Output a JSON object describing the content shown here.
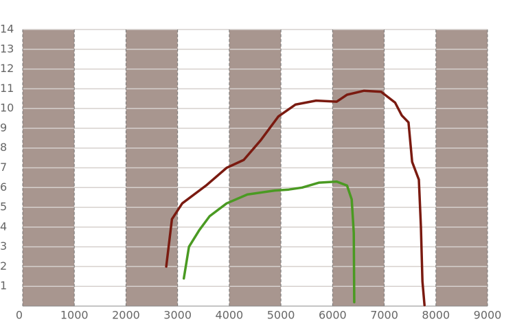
{
  "chart_data": {
    "type": "line",
    "xlim": [
      0,
      9000
    ],
    "xticks": [
      0,
      1000,
      2000,
      3000,
      4000,
      5000,
      6000,
      7000,
      8000,
      9000
    ],
    "ylim": [
      0,
      14
    ],
    "yticks": [
      1,
      2,
      3,
      4,
      5,
      6,
      7,
      8,
      9,
      10,
      11,
      12,
      13,
      14
    ],
    "grid": true,
    "band_color": "#a8968f",
    "series": [
      {
        "color": "#7a1a10",
        "x": [
          2780,
          2890,
          3090,
          3550,
          3950,
          4280,
          4610,
          4950,
          5280,
          5680,
          6080,
          6280,
          6610,
          6940,
          7210,
          7340,
          7470,
          7540,
          7670,
          7710,
          7740,
          7780
        ],
        "values": [
          2.0,
          4.4,
          5.2,
          6.1,
          7.0,
          7.4,
          8.4,
          9.6,
          10.2,
          10.4,
          10.35,
          10.7,
          10.9,
          10.85,
          10.3,
          9.65,
          9.3,
          7.3,
          6.4,
          4.0,
          1.25,
          0.05
        ]
      },
      {
        "color": "#4a9a22",
        "x": [
          3120,
          3220,
          3420,
          3620,
          3950,
          4350,
          4880,
          5150,
          5410,
          5740,
          6080,
          6280,
          6370,
          6410,
          6420
        ],
        "values": [
          1.4,
          3.0,
          3.85,
          4.55,
          5.2,
          5.65,
          5.85,
          5.9,
          6.0,
          6.25,
          6.3,
          6.1,
          5.4,
          3.7,
          0.2
        ]
      }
    ]
  }
}
